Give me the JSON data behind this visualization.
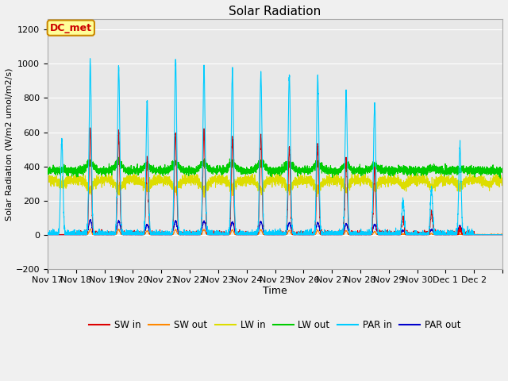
{
  "title": "Solar Radiation",
  "ylabel": "Solar Radiation (W/m2 umol/m2/s)",
  "xlabel": "Time",
  "ylim": [
    -200,
    1260
  ],
  "yticks": [
    -200,
    0,
    200,
    400,
    600,
    800,
    1000,
    1200
  ],
  "figsize": [
    6.4,
    4.8
  ],
  "dpi": 100,
  "bg_color": "#f0f0f0",
  "plot_bg_color": "#e8e8e8",
  "annotation_text": "DC_met",
  "annotation_box_facecolor": "#ffff99",
  "annotation_box_edgecolor": "#cc8800",
  "annotation_text_color": "#cc0000",
  "series_colors": {
    "SW_in": "#dd0000",
    "SW_out": "#ff8800",
    "LW_in": "#dddd00",
    "LW_out": "#00cc00",
    "PAR_in": "#00ccff",
    "PAR_out": "#0000cc"
  },
  "legend_labels": [
    "SW in",
    "SW out",
    "LW in",
    "LW out",
    "PAR in",
    "PAR out"
  ],
  "num_days": 16,
  "day_labels": [
    "Nov 17",
    "Nov 18",
    "Nov 19",
    "Nov 20",
    "Nov 21",
    "Nov 22",
    "Nov 23",
    "Nov 24",
    "Nov 25",
    "Nov 26",
    "Nov 27",
    "Nov 28",
    "Nov 29",
    "Nov 30",
    "Dec 1",
    "Dec 2"
  ],
  "points_per_day": 288,
  "SW_in_peaks": [
    0,
    620,
    600,
    450,
    600,
    605,
    570,
    585,
    510,
    530,
    450,
    385,
    100,
    135,
    30,
    0
  ],
  "PAR_in_peaks": [
    560,
    1010,
    970,
    780,
    1020,
    970,
    960,
    940,
    930,
    930,
    830,
    770,
    200,
    270,
    520,
    0
  ],
  "PAR_out_peaks": [
    0,
    85,
    80,
    60,
    80,
    80,
    75,
    75,
    70,
    70,
    65,
    60,
    25,
    30,
    50,
    0
  ],
  "LW_in_base": 320,
  "LW_out_base": 375,
  "LW_in_noise": 15,
  "LW_out_noise": 12,
  "grid_color": "#ffffff",
  "spine_color": "#aaaaaa"
}
